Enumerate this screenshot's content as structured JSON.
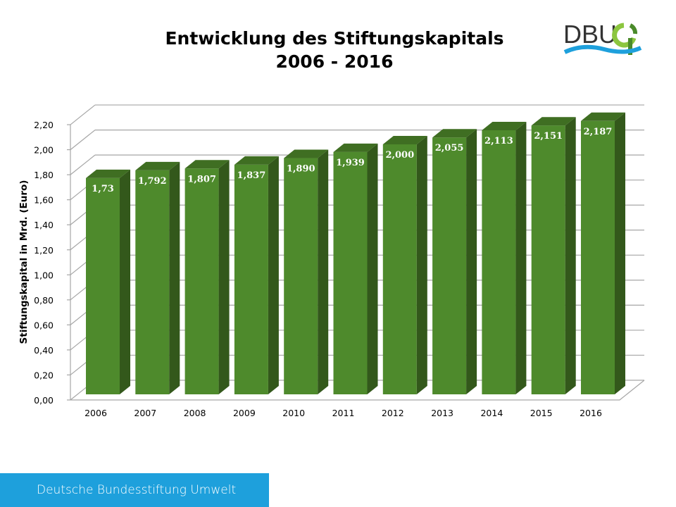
{
  "chart_data": {
    "type": "bar",
    "title": "Entwicklung des Stiftungskapitals",
    "subtitle": "2006 - 2016",
    "xlabel": "",
    "ylabel": "Stiftungskapital in Mrd. (Euro)",
    "categories": [
      "2006",
      "2007",
      "2008",
      "2009",
      "2010",
      "2011",
      "2012",
      "2013",
      "2014",
      "2015",
      "2016"
    ],
    "values": [
      1.73,
      1.792,
      1.807,
      1.837,
      1.89,
      1.939,
      2.0,
      2.055,
      2.113,
      2.151,
      2.187
    ],
    "data_labels": [
      "1,73",
      "1,792",
      "1,807",
      "1,837",
      "1,890",
      "1,939",
      "2,000",
      "2,055",
      "2,113",
      "2,151",
      "2,187"
    ],
    "yticks": [
      "0,00",
      "0,20",
      "0,40",
      "0,60",
      "0,80",
      "1,00",
      "1,20",
      "1,40",
      "1,60",
      "1,80",
      "2,00",
      "2,20"
    ],
    "ylim": [
      0,
      2.2
    ],
    "grid": true,
    "style": "3d",
    "colors": {
      "bar_front": "#4e8a2c",
      "bar_side": "#33581b",
      "bar_top": "#3f6e22",
      "grid": "#a6a6a6"
    }
  },
  "logo": {
    "text": "DBU"
  },
  "footer": {
    "text": "Deutsche Bundesstiftung Umwelt"
  }
}
